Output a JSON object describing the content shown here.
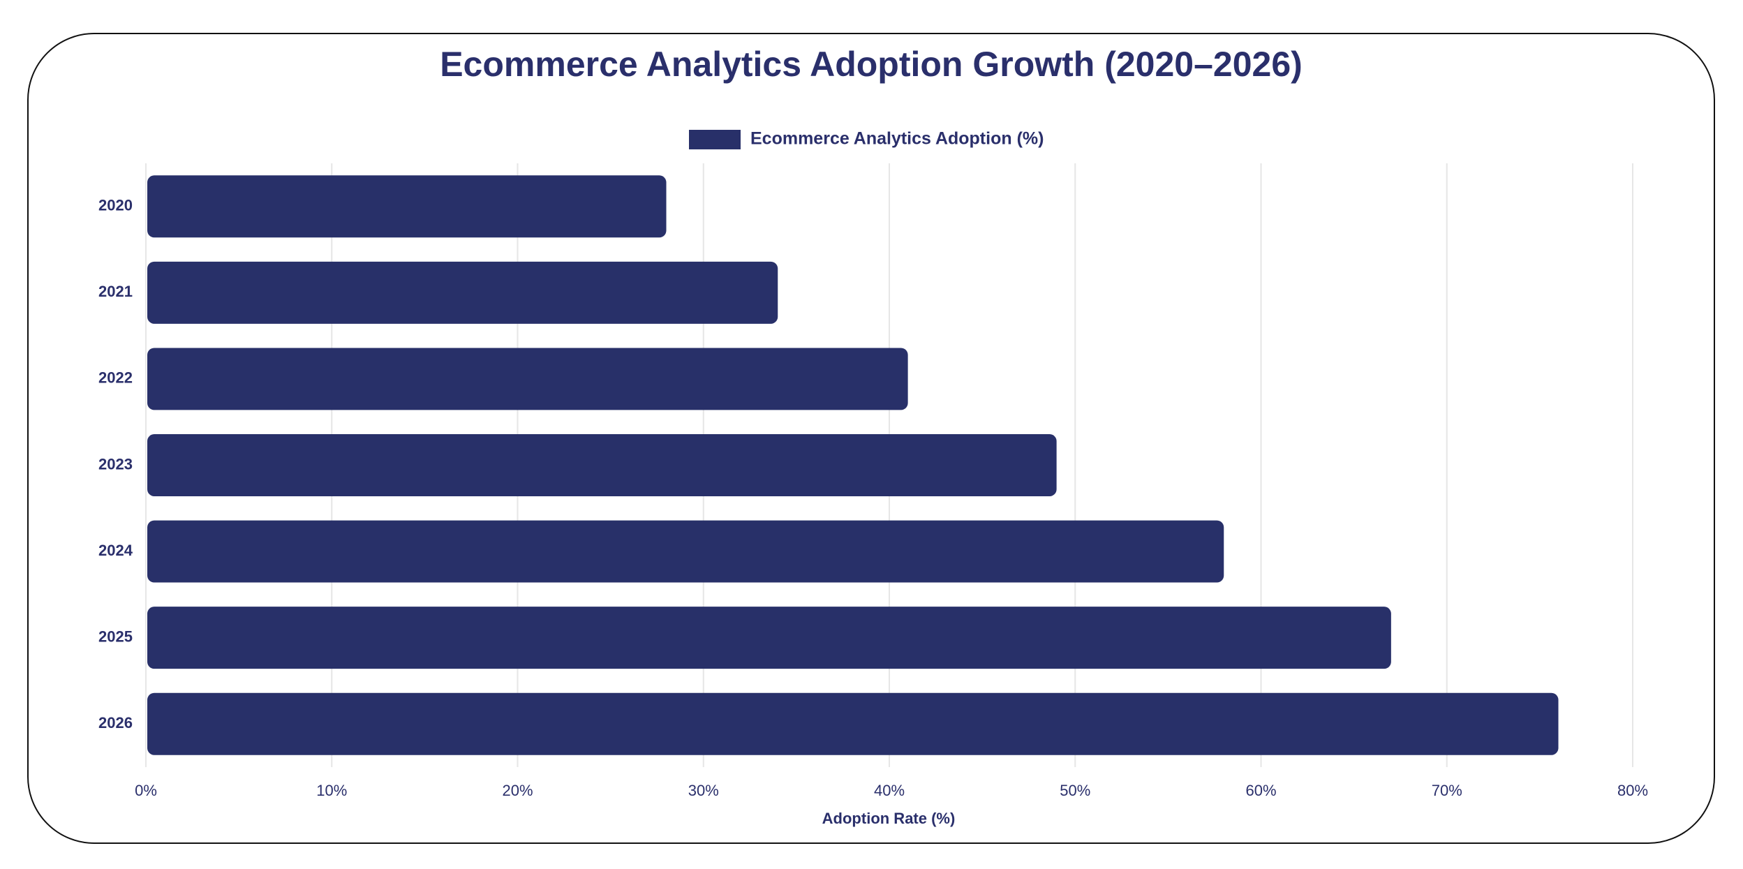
{
  "chart_data": {
    "type": "bar",
    "orientation": "horizontal",
    "title": "Ecommerce Analytics Adoption Growth (2020–2026)",
    "categories": [
      "2020",
      "2021",
      "2022",
      "2023",
      "2024",
      "2025",
      "2026"
    ],
    "series": [
      {
        "name": "Ecommerce Analytics Adoption (%)",
        "color": "#283069",
        "values": [
          28,
          34,
          41,
          49,
          58,
          67,
          76
        ]
      }
    ],
    "x_label": "Adoption Rate (%)",
    "xlim": [
      0,
      80
    ],
    "xticks": [
      {
        "value": 0,
        "label": "0%"
      },
      {
        "value": 10,
        "label": "10%"
      },
      {
        "value": 20,
        "label": "20%"
      },
      {
        "value": 30,
        "label": "30%"
      },
      {
        "value": 40,
        "label": "40%"
      },
      {
        "value": 50,
        "label": "50%"
      },
      {
        "value": 60,
        "label": "60%"
      },
      {
        "value": 70,
        "label": "70%"
      },
      {
        "value": 80,
        "label": "80%"
      }
    ],
    "grid": true,
    "legend": "top"
  }
}
